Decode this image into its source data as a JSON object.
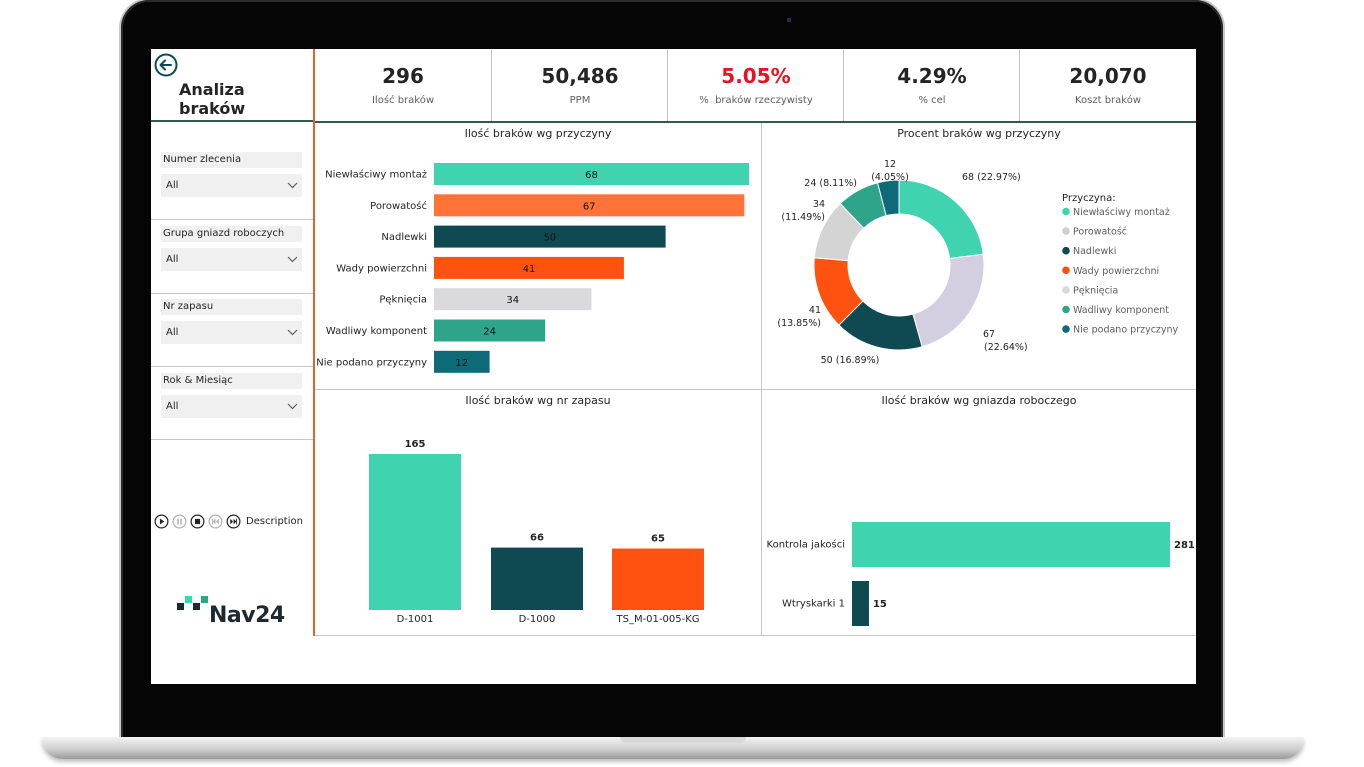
{
  "page": {
    "title": "Analiza braków"
  },
  "sidebar": {
    "slicers": [
      {
        "label": "Numer zlecenia",
        "value": "All"
      },
      {
        "label": "Grupa gniazd roboczych",
        "value": "All"
      },
      {
        "label": "Nr zapasu",
        "value": "All"
      },
      {
        "label": "Rok & Miesiąc",
        "value": "All"
      }
    ],
    "player_label": "Description",
    "logo_text": "Nav24"
  },
  "kpis": [
    {
      "value": "296",
      "label": "Ilość braków"
    },
    {
      "value": "50,486",
      "label": "PPM"
    },
    {
      "value": "5.05%",
      "label": "%  braków rzeczywisty",
      "color": "#e81123"
    },
    {
      "value": "4.29%",
      "label": "% cel"
    },
    {
      "value": "20,070",
      "label": "Koszt braków"
    }
  ],
  "colors": {
    "teal": "#3fd3b0",
    "orange": "#ff7338",
    "dark_teal": "#0f4a52",
    "red_orange": "#ff5210",
    "light_gray": "#d9d9de",
    "green": "#2ea58a",
    "blue_teal": "#0d6b78",
    "lavender": "#d3cfe1",
    "gray": "#cfcfcf",
    "accent_line": "#e5622d",
    "kpi_red": "#e81123"
  },
  "chart_data": [
    {
      "type": "bar",
      "orientation": "horizontal",
      "title": "Ilość braków wg przyczyny",
      "categories": [
        "Niewłaściwy montaż",
        "Porowatość",
        "Nadlewki",
        "Wady powierzchni",
        "Pęknięcia",
        "Wadliwy komponent",
        "Nie podano przyczyny"
      ],
      "values": [
        68,
        67,
        50,
        41,
        34,
        24,
        12
      ],
      "colors": [
        "#3fd3b0",
        "#ff7338",
        "#0f4a52",
        "#ff5210",
        "#d9d9de",
        "#2ea58a",
        "#0d6b78"
      ],
      "value_labels": [
        "68",
        "67",
        "50",
        "41",
        "34",
        "24",
        "12"
      ],
      "xlim": [
        0,
        68
      ]
    },
    {
      "type": "pie",
      "donut": true,
      "title": "Procent braków wg przyczyny",
      "legend_title": "Przyczyna:",
      "legend_position": "right",
      "categories": [
        "Niewłaściwy montaż",
        "Porowatość",
        "Nadlewki",
        "Wady powierzchni",
        "Pęknięcia",
        "Wadliwy komponent",
        "Nie podano przyczyny"
      ],
      "values": [
        68,
        67,
        50,
        41,
        34,
        24,
        12
      ],
      "percent_labels": [
        "(22.97%)",
        "(22.64%)",
        "(16.89%)",
        "(13.85%)",
        "(11.49%)",
        "(8.11%)",
        "(4.05%)"
      ],
      "slice_colors": [
        "#3fd3b0",
        "#d3cfe1",
        "#0f4a52",
        "#ff5210",
        "#d4d4d4",
        "#2ea58a",
        "#0d6b78"
      ],
      "legend_colors": [
        "#3fd3b0",
        "#cfcfcf",
        "#0f4a52",
        "#ff5210",
        "#d9d9d9",
        "#2ea58a",
        "#0d6b78"
      ]
    },
    {
      "type": "bar",
      "orientation": "vertical",
      "title": "Ilość braków wg nr zapasu",
      "categories": [
        "D-1001",
        "D-1000",
        "TS_M-01-005-KG"
      ],
      "values": [
        165,
        66,
        65
      ],
      "value_labels": [
        "165",
        "66",
        "65"
      ],
      "colors": [
        "#3fd3b0",
        "#0f4a52",
        "#ff5210"
      ],
      "ylim": [
        0,
        165
      ]
    },
    {
      "type": "bar",
      "orientation": "horizontal",
      "title": "Ilość braków wg gniazda roboczego",
      "categories": [
        "Kontrola jakości",
        "Wtryskarki 1"
      ],
      "values": [
        281,
        15
      ],
      "value_labels": [
        "281",
        "15"
      ],
      "colors": [
        "#3fd3b0",
        "#0f4a52"
      ],
      "xlim": [
        0,
        281
      ]
    }
  ]
}
